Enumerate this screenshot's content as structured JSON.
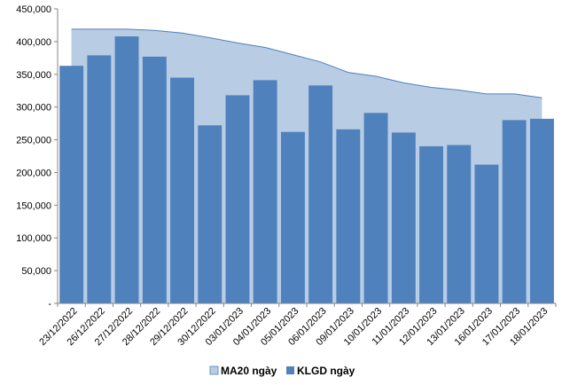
{
  "chart_data": {
    "type": "bar",
    "categories": [
      "23/12/2022",
      "26/12/2022",
      "27/12/2022",
      "28/12/2022",
      "29/12/2022",
      "30/12/2022",
      "03/01/2023",
      "04/01/2023",
      "05/01/2023",
      "06/01/2023",
      "09/01/2023",
      "10/01/2023",
      "11/01/2023",
      "12/01/2023",
      "13/01/2023",
      "16/01/2023",
      "17/01/2023",
      "18/01/2023"
    ],
    "series": [
      {
        "name": "MA20 ngày",
        "type": "area",
        "color": "#b8cce4",
        "values": [
          419000,
          419000,
          419000,
          417000,
          413000,
          406000,
          398000,
          391000,
          380000,
          369000,
          353000,
          347000,
          337000,
          330000,
          326000,
          320000,
          320000,
          314000
        ]
      },
      {
        "name": "KLGD ngày",
        "type": "bar",
        "color": "#4f81bd",
        "values": [
          363000,
          379000,
          408000,
          377000,
          345000,
          272000,
          318000,
          341000,
          262000,
          333000,
          266000,
          291000,
          261000,
          240000,
          242000,
          212000,
          280000,
          282000
        ]
      }
    ],
    "y_ticks": [
      "-",
      "50,000",
      "100,000",
      "150,000",
      "200,000",
      "250,000",
      "300,000",
      "350,000",
      "400,000",
      "450,000"
    ],
    "ylim": [
      0,
      450000
    ],
    "grid": false,
    "legend_position": "bottom"
  }
}
